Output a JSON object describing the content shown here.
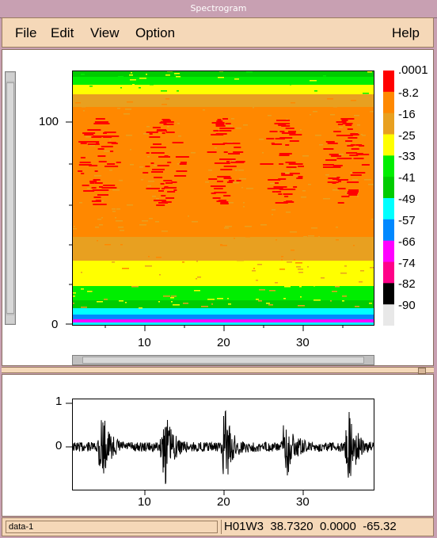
{
  "window": {
    "title": "Spectrogram"
  },
  "menu": {
    "file": "File",
    "edit": "Edit",
    "view": "View",
    "option": "Option",
    "help": "Help"
  },
  "spectrogram": {
    "y_ticks": [
      "100",
      "0"
    ],
    "x_ticks": [
      "10",
      "20",
      "30"
    ]
  },
  "colorbar": {
    "labels": [
      ".0001",
      "-8.2",
      "-16",
      "-25",
      "-33",
      "-41",
      "-49",
      "-57",
      "-66",
      "-74",
      "-82",
      "-90"
    ],
    "colors": [
      "#ff0000",
      "#ff8800",
      "#e8a020",
      "#ffff00",
      "#00ee00",
      "#00cc00",
      "#00ffff",
      "#0088ff",
      "#ff00ff",
      "#ff0088",
      "#000000",
      "#e8e8e8"
    ]
  },
  "waveform": {
    "y_ticks": [
      "1",
      "0"
    ],
    "x_ticks": [
      "10",
      "20",
      "30"
    ]
  },
  "status": {
    "left": "data-1",
    "channel": "H01W3",
    "time": "38.7320",
    "value": "0.0000",
    "db": "-65.32"
  }
}
